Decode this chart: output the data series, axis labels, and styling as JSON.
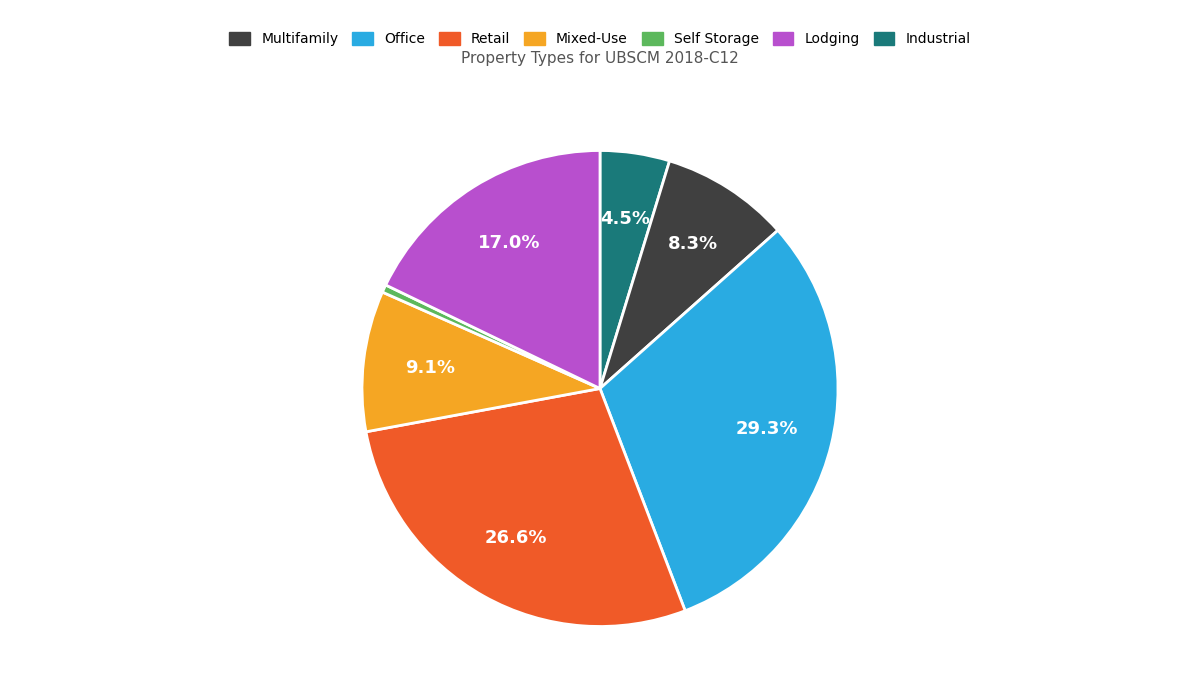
{
  "title": "Property Types for UBSCM 2018-C12",
  "labels": [
    "Multifamily",
    "Office",
    "Retail",
    "Mixed-Use",
    "Self Storage",
    "Lodging",
    "Industrial"
  ],
  "values": [
    8.3,
    29.3,
    26.6,
    9.1,
    0.5,
    17.0,
    4.5
  ],
  "colors": [
    "#404040",
    "#29abe2",
    "#f05a28",
    "#f5a623",
    "#5cb85c",
    "#b84fce",
    "#1a7a7a"
  ],
  "title_fontsize": 11,
  "legend_fontsize": 10,
  "label_fontsize": 13,
  "label_color": "white",
  "background_color": "#ffffff",
  "startangle": 90,
  "figsize": [
    12,
    7
  ],
  "slice_order": [
    "Industrial",
    "Multifamily",
    "Office",
    "Retail",
    "Mixed-Use",
    "Self Storage",
    "Lodging"
  ],
  "display_values": {
    "Multifamily": "8.3%",
    "Office": "29.3%",
    "Retail": "26.6%",
    "Mixed-Use": "9.1%",
    "Self Storage": "",
    "Lodging": "17.0%",
    "Industrial": "4.5%"
  }
}
